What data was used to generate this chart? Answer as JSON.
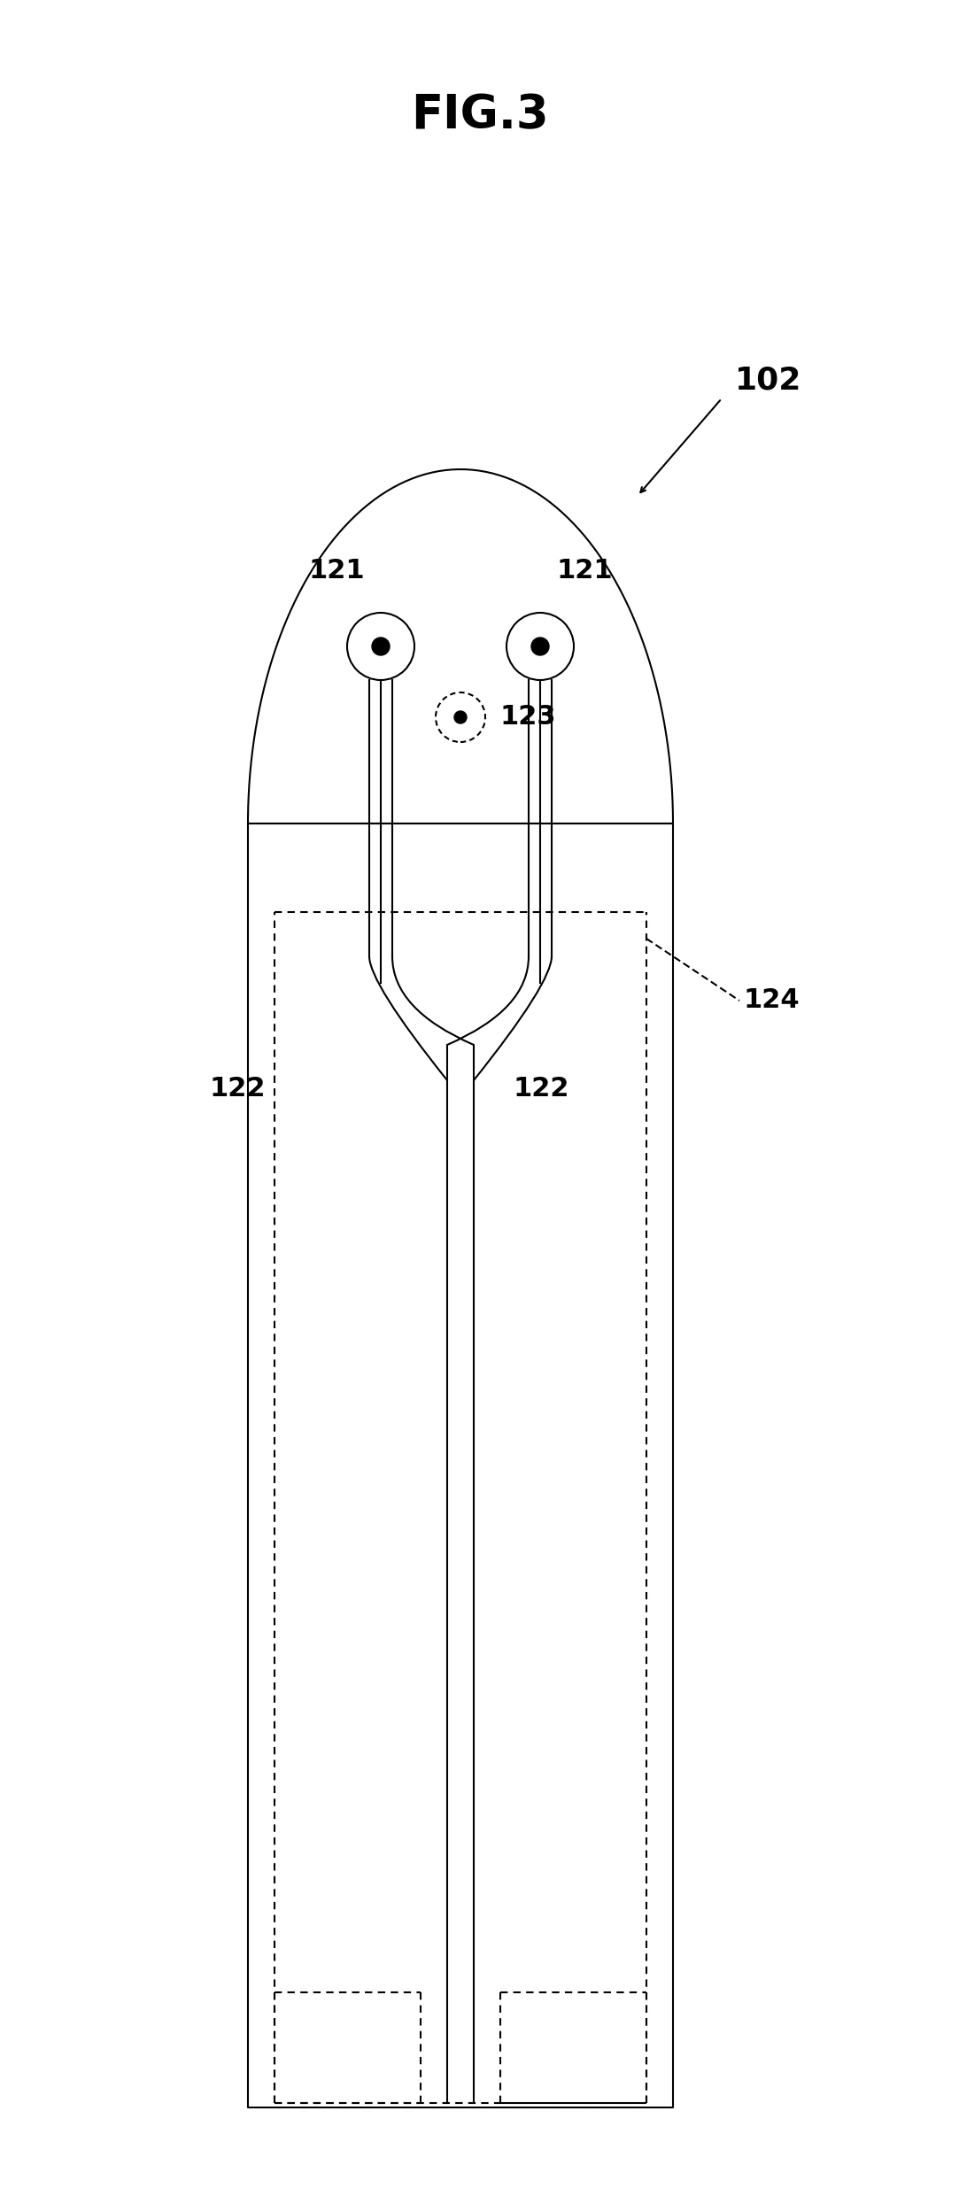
{
  "title": "FIG.3",
  "bg_color": "#ffffff",
  "line_color": "#000000",
  "fig_width": 10.83,
  "fig_height": 24.8,
  "label_102": "102",
  "label_121_left": "121",
  "label_121_right": "121",
  "label_122_left": "122",
  "label_122_right": "122",
  "label_123": "123",
  "label_124": "124"
}
